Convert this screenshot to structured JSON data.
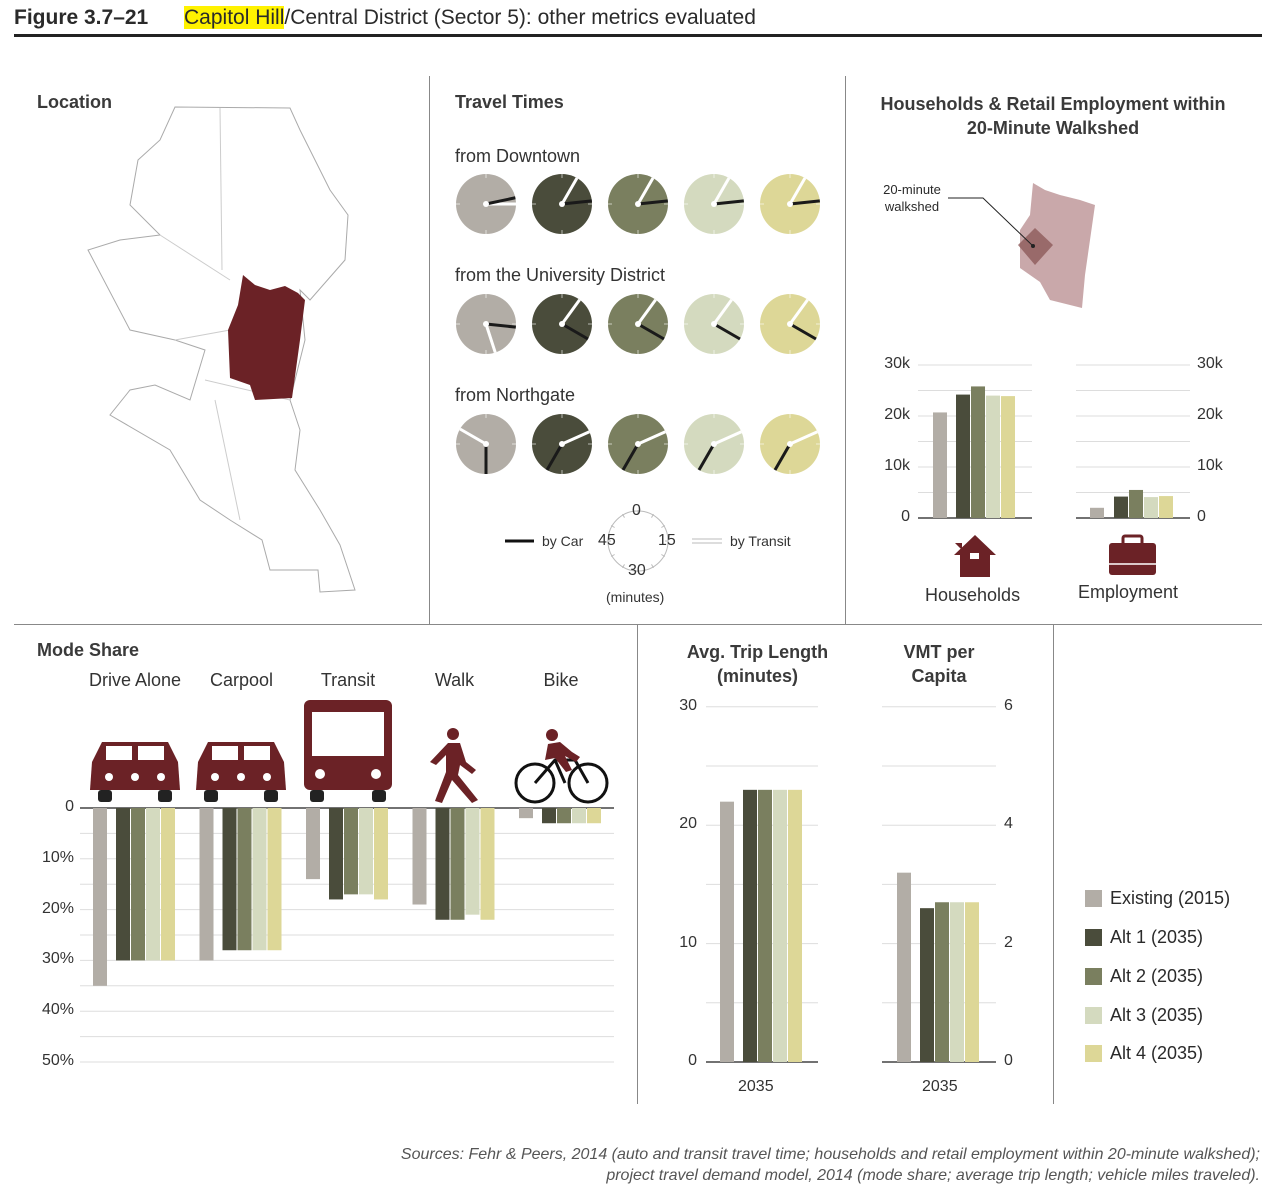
{
  "header": {
    "figure_number": "Figure 3.7–21",
    "title_highlight": "Capitol Hill",
    "title_rest": "/Central District (Sector 5): other metrics evaluated"
  },
  "colors": {
    "existing": "#b2ada6",
    "alt1": "#4a4c3b",
    "alt2": "#7a7f5f",
    "alt3": "#d4dabf",
    "alt4": "#ddd797",
    "maroon": "#6b2226",
    "walkshed": "#c9a8aa"
  },
  "location": {
    "title": "Location"
  },
  "travel_times": {
    "title": "Travel Times",
    "rows": [
      {
        "label": "from Downtown",
        "car": [
          13,
          14,
          14,
          14,
          14
        ],
        "transit": [
          15,
          5,
          5,
          5,
          5
        ]
      },
      {
        "label": "from the University District",
        "car": [
          16,
          20,
          20,
          20,
          20
        ],
        "transit": [
          27,
          6,
          6,
          6,
          6
        ]
      },
      {
        "label": "from Northgate",
        "car": [
          30,
          35,
          35,
          35,
          35
        ],
        "transit": [
          50,
          11,
          11,
          11,
          11
        ]
      }
    ],
    "legend": {
      "car": "by Car",
      "transit": "by Transit",
      "t0": "0",
      "t15": "15",
      "t30": "30",
      "t45": "45",
      "unit": "(minutes)"
    }
  },
  "walkshed": {
    "title": "Households & Retail Employment within 20-Minute Walkshed",
    "callout": "20-minute walkshed",
    "ticks": [
      "0",
      "10k",
      "20k",
      "30k"
    ],
    "households": {
      "label": "Households",
      "values": [
        20700,
        24200,
        25800,
        24000,
        23900
      ]
    },
    "employment": {
      "label": "Employment",
      "values": [
        2000,
        4200,
        5500,
        4100,
        4300
      ]
    }
  },
  "mode_share": {
    "title": "Mode Share",
    "ticks": [
      "0",
      "10%",
      "20%",
      "30%",
      "40%",
      "50%"
    ],
    "modes": [
      {
        "label": "Drive Alone",
        "icon": "car-icon",
        "values": [
          35,
          30,
          30,
          30,
          30
        ]
      },
      {
        "label": "Carpool",
        "icon": "carpool-icon",
        "values": [
          30,
          28,
          28,
          28,
          28
        ]
      },
      {
        "label": "Transit",
        "icon": "bus-icon",
        "values": [
          14,
          18,
          17,
          17,
          18
        ]
      },
      {
        "label": "Walk",
        "icon": "walk-icon",
        "values": [
          19,
          22,
          22,
          21,
          22
        ]
      },
      {
        "label": "Bike",
        "icon": "bike-icon",
        "values": [
          2,
          3,
          3,
          3,
          3
        ]
      }
    ]
  },
  "trip_length": {
    "title": "Avg. Trip Length (minutes)",
    "ticks": [
      "0",
      "10",
      "20",
      "30"
    ],
    "values": [
      22,
      23,
      23,
      23,
      23
    ],
    "xlabel": "2035"
  },
  "vmt": {
    "title": "VMT per Capita",
    "ticks": [
      "0",
      "2",
      "4",
      "6"
    ],
    "values": [
      3.2,
      2.6,
      2.7,
      2.7,
      2.7
    ],
    "xlabel": "2035"
  },
  "legend": [
    "Existing (2015)",
    "Alt 1 (2035)",
    "Alt 2 (2035)",
    "Alt 3 (2035)",
    "Alt 4 (2035)"
  ],
  "sources": [
    "Sources: Fehr & Peers, 2014 (auto and transit travel time; households and retail employment within 20-minute walkshed);",
    "project travel demand model, 2014 (mode share; average trip length; vehicle miles traveled)."
  ]
}
